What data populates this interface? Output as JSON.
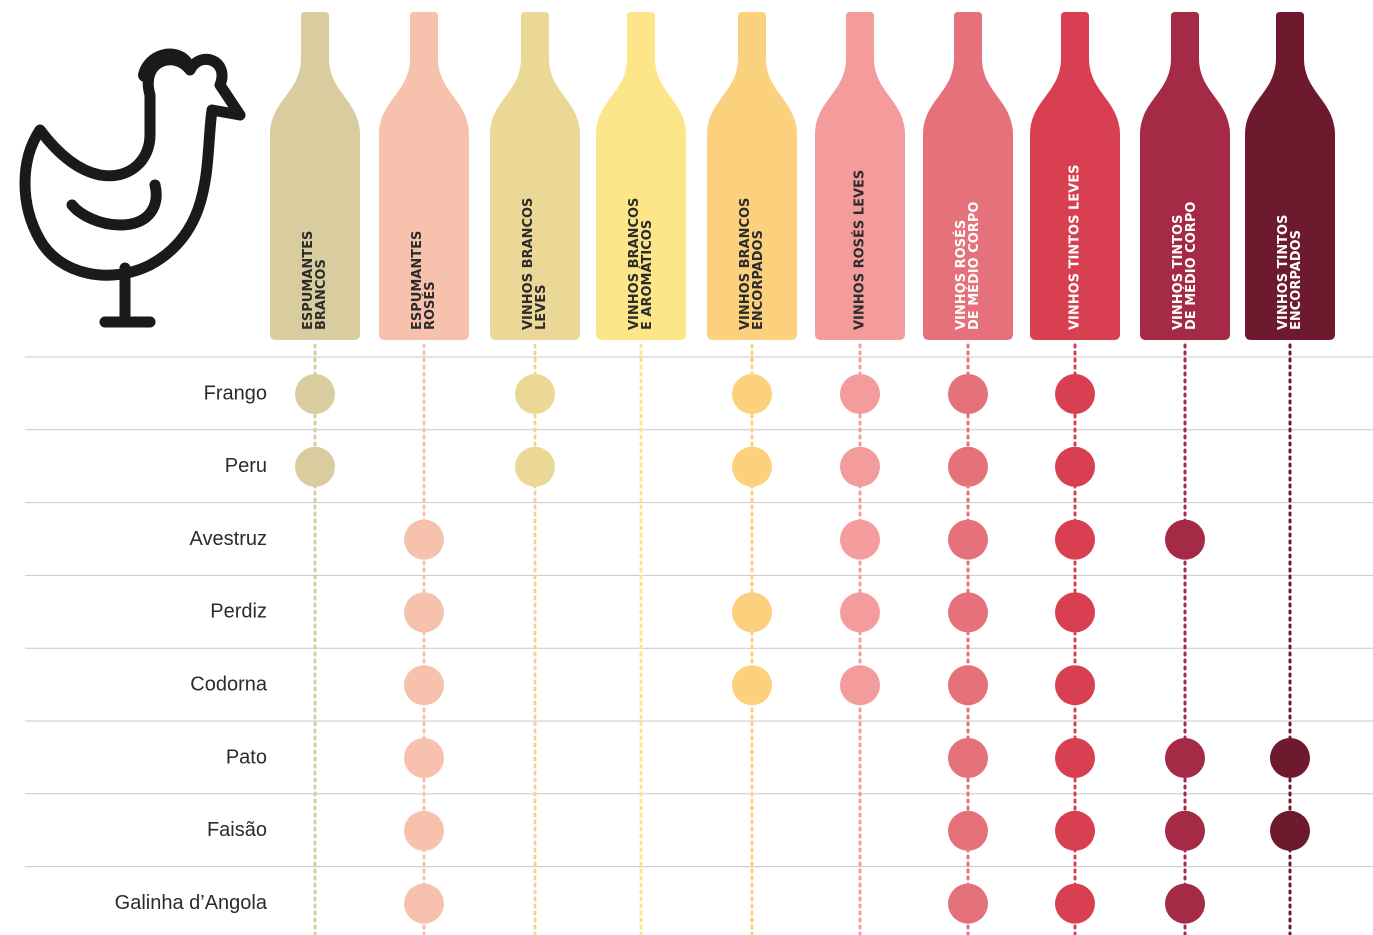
{
  "columns": [
    {
      "label": [
        "ESPUMANTES",
        "BRANCOS"
      ],
      "color": "#d9cc9e",
      "text_color": "#2b2b2b"
    },
    {
      "label": [
        "ESPUMANTES",
        "ROSÉS"
      ],
      "color": "#f6c2ad",
      "text_color": "#2b2b2b"
    },
    {
      "label": [
        "VINHOS BRANCOS",
        "LEVES"
      ],
      "color": "#ebd897",
      "text_color": "#2b2b2b"
    },
    {
      "label": [
        "VINHOS BRANCOS",
        "E AROMÁTICOS"
      ],
      "color": "#fde68a",
      "text_color": "#2b2b2b"
    },
    {
      "label": [
        "VINHOS BRANCOS",
        "ENCORPADOS"
      ],
      "color": "#fbd17e",
      "text_color": "#2b2b2b"
    },
    {
      "label": [
        "VINHOS ROSÉS LEVES"
      ],
      "color": "#f49c9c",
      "text_color": "#2b2b2b"
    },
    {
      "label": [
        "VINHOS ROSÉS",
        "DE MÉDIO CORPO"
      ],
      "color": "#e5717a",
      "text_color": "#ffffff"
    },
    {
      "label": [
        "VINHOS TINTOS LEVES"
      ],
      "color": "#d84052",
      "text_color": "#ffffff"
    },
    {
      "label": [
        "VINHOS TINTOS",
        "DE MÉDIO CORPO"
      ],
      "color": "#a42a45",
      "text_color": "#ffffff"
    },
    {
      "label": [
        "VINHOS TINTOS",
        "ENCORPADOS"
      ],
      "color": "#6e1a2e",
      "text_color": "#ffffff"
    }
  ],
  "rows": [
    {
      "label": "Frango",
      "matches": [
        true,
        false,
        true,
        false,
        true,
        true,
        true,
        true,
        false,
        false
      ]
    },
    {
      "label": "Peru",
      "matches": [
        true,
        false,
        true,
        false,
        true,
        true,
        true,
        true,
        false,
        false
      ]
    },
    {
      "label": "Avestruz",
      "matches": [
        false,
        true,
        false,
        false,
        false,
        true,
        true,
        true,
        true,
        false
      ]
    },
    {
      "label": "Perdiz",
      "matches": [
        false,
        true,
        false,
        false,
        true,
        true,
        true,
        true,
        false,
        false
      ]
    },
    {
      "label": "Codorna",
      "matches": [
        false,
        true,
        false,
        false,
        true,
        true,
        true,
        true,
        false,
        false
      ]
    },
    {
      "label": "Pato",
      "matches": [
        false,
        true,
        false,
        false,
        false,
        false,
        true,
        true,
        true,
        true
      ]
    },
    {
      "label": "Faisão",
      "matches": [
        false,
        true,
        false,
        false,
        false,
        false,
        true,
        true,
        true,
        true
      ]
    },
    {
      "label": "Galinha d’Angola",
      "matches": [
        false,
        true,
        false,
        false,
        false,
        false,
        true,
        true,
        true,
        false
      ]
    }
  ]
}
